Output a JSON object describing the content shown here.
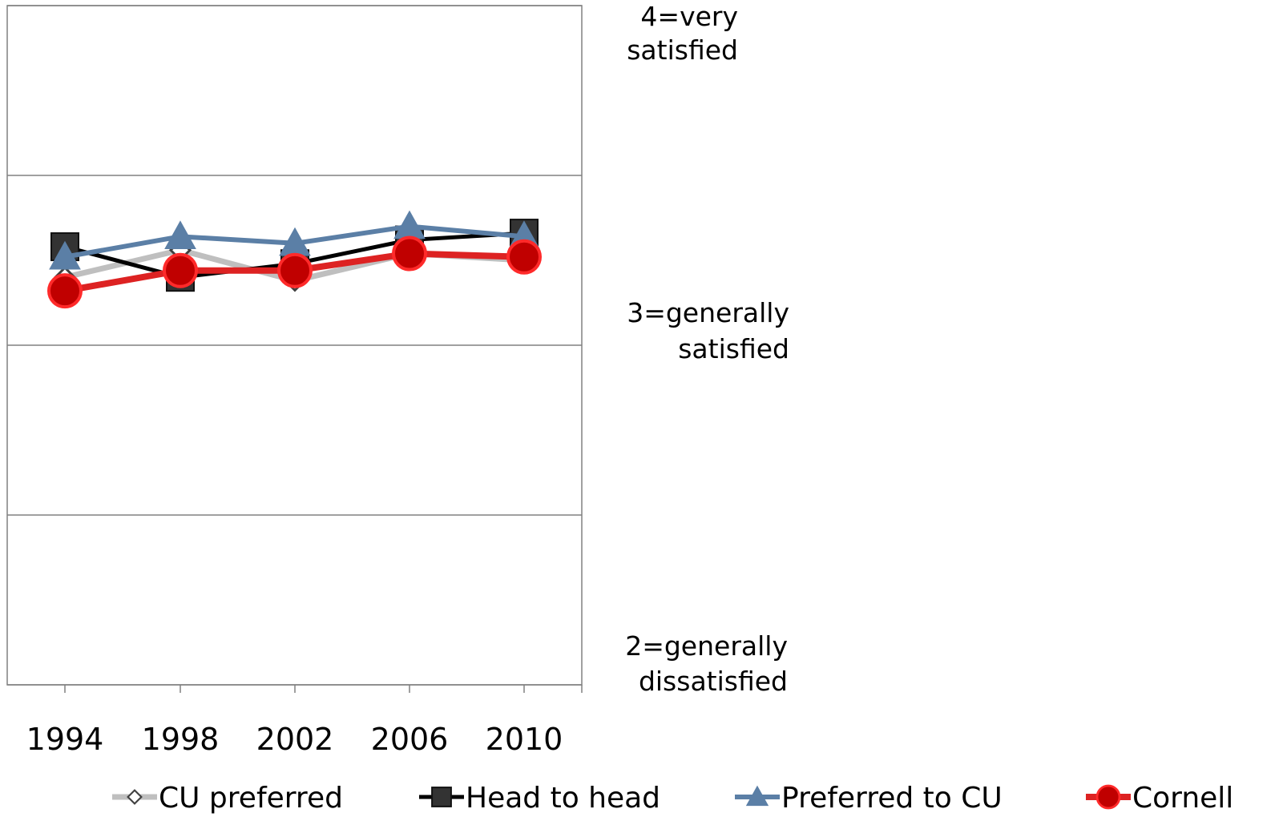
{
  "chart_data": {
    "type": "line",
    "title": "",
    "xlabel": "",
    "ylabel": "",
    "categories": [
      "1994",
      "1998",
      "2002",
      "2006",
      "2010"
    ],
    "ylim": [
      2,
      4
    ],
    "y_gridlines": [
      2,
      2.5,
      3,
      3.5,
      4
    ],
    "y_labels": [
      {
        "value": 4,
        "lines": [
          "4=very",
          "satisfied"
        ]
      },
      {
        "value": 3,
        "lines": [
          "3=generally",
          "satisfied"
        ]
      },
      {
        "value": 2,
        "lines": [
          "2=generally",
          "dissatisfied"
        ]
      }
    ],
    "series": [
      {
        "name": "CU preferred",
        "color": "#bfbfbf",
        "marker": "diamond",
        "values": [
          3.2,
          3.28,
          3.19,
          3.27,
          3.25
        ]
      },
      {
        "name": "Head to head",
        "color": "#000000",
        "marker": "square",
        "values": [
          3.29,
          3.2,
          3.24,
          3.31,
          3.33
        ]
      },
      {
        "name": "Preferred to CU",
        "color": "#5b7fa6",
        "marker": "triangle",
        "values": [
          3.26,
          3.32,
          3.3,
          3.35,
          3.32
        ]
      },
      {
        "name": "Cornell",
        "color": "#dd2222",
        "marker": "circle",
        "values": [
          3.16,
          3.22,
          3.22,
          3.27,
          3.26
        ]
      }
    ],
    "legend_position": "bottom",
    "grid": true
  }
}
